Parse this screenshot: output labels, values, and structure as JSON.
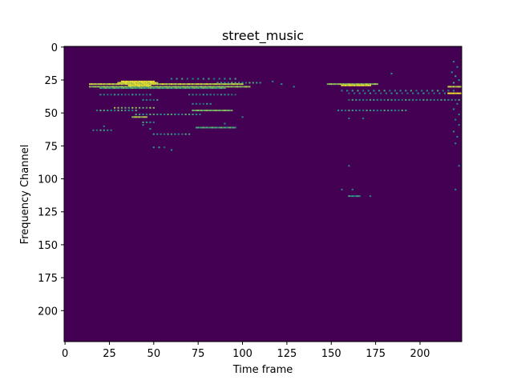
{
  "chart_data": {
    "type": "heatmap",
    "title": "street_music",
    "xlabel": "Time frame",
    "ylabel": "Frequency Channel",
    "xlim": [
      0,
      224
    ],
    "ylim": [
      224,
      0
    ],
    "x_ticks": [
      0,
      25,
      50,
      75,
      100,
      125,
      150,
      175,
      200
    ],
    "y_ticks": [
      0,
      25,
      50,
      75,
      100,
      125,
      150,
      175,
      200
    ],
    "colormap": "viridis",
    "background_value": 0,
    "background_color": "#440154",
    "colors": {
      "low": "#440154",
      "mid": "#21918c",
      "high": "#fde725"
    },
    "segments": [
      {
        "y": 28,
        "x_start": 14,
        "x_end": 100,
        "step": 1,
        "value": 0.85
      },
      {
        "y": 27,
        "x_start": 30,
        "x_end": 52,
        "step": 1,
        "value": 0.9
      },
      {
        "y": 26,
        "x_start": 32,
        "x_end": 50,
        "step": 1,
        "value": 0.95
      },
      {
        "y": 29,
        "x_start": 36,
        "x_end": 48,
        "step": 1,
        "value": 1.0
      },
      {
        "y": 30,
        "x_start": 14,
        "x_end": 104,
        "step": 1,
        "value": 0.75
      },
      {
        "y": 31,
        "x_start": 20,
        "x_end": 90,
        "step": 1,
        "value": 0.6
      },
      {
        "y": 27,
        "x_start": 86,
        "x_end": 110,
        "step": 2,
        "value": 0.55
      },
      {
        "y": 24,
        "x_start": 60,
        "x_end": 96,
        "step": 3,
        "value": 0.5
      },
      {
        "y": 36,
        "x_start": 20,
        "x_end": 48,
        "step": 2,
        "value": 0.45
      },
      {
        "y": 36,
        "x_start": 70,
        "x_end": 96,
        "step": 2,
        "value": 0.45
      },
      {
        "y": 40,
        "x_start": 44,
        "x_end": 52,
        "step": 2,
        "value": 0.45
      },
      {
        "y": 43,
        "x_start": 72,
        "x_end": 82,
        "step": 2,
        "value": 0.45
      },
      {
        "y": 46,
        "x_start": 28,
        "x_end": 50,
        "step": 2,
        "value": 0.7
      },
      {
        "y": 48,
        "x_start": 18,
        "x_end": 40,
        "step": 2,
        "value": 0.55
      },
      {
        "y": 48,
        "x_start": 72,
        "x_end": 94,
        "step": 1,
        "value": 0.7
      },
      {
        "y": 51,
        "x_start": 40,
        "x_end": 76,
        "step": 2,
        "value": 0.55
      },
      {
        "y": 53,
        "x_start": 38,
        "x_end": 46,
        "step": 1,
        "value": 0.8
      },
      {
        "y": 57,
        "x_start": 44,
        "x_end": 50,
        "step": 2,
        "value": 0.5
      },
      {
        "y": 61,
        "x_start": 74,
        "x_end": 96,
        "step": 1,
        "value": 0.6
      },
      {
        "y": 63,
        "x_start": 16,
        "x_end": 26,
        "step": 2,
        "value": 0.5
      },
      {
        "y": 66,
        "x_start": 50,
        "x_end": 70,
        "step": 2,
        "value": 0.5
      },
      {
        "y": 76,
        "x_start": 50,
        "x_end": 56,
        "step": 3,
        "value": 0.45
      },
      {
        "y": 28,
        "x_start": 148,
        "x_end": 176,
        "step": 1,
        "value": 0.75
      },
      {
        "y": 29,
        "x_start": 156,
        "x_end": 172,
        "step": 1,
        "value": 0.95
      },
      {
        "y": 33,
        "x_start": 156,
        "x_end": 220,
        "step": 3,
        "value": 0.5
      },
      {
        "y": 35,
        "x_start": 160,
        "x_end": 214,
        "step": 3,
        "value": 0.45
      },
      {
        "y": 40,
        "x_start": 160,
        "x_end": 224,
        "step": 2,
        "value": 0.5
      },
      {
        "y": 48,
        "x_start": 154,
        "x_end": 192,
        "step": 2,
        "value": 0.5
      },
      {
        "y": 35,
        "x_start": 216,
        "x_end": 224,
        "step": 1,
        "value": 1.0
      },
      {
        "y": 30,
        "x_start": 216,
        "x_end": 224,
        "step": 1,
        "value": 0.85
      },
      {
        "y": 113,
        "x_start": 160,
        "x_end": 166,
        "step": 1,
        "value": 0.5
      }
    ],
    "points": [
      [
        122,
        28,
        0.5
      ],
      [
        129,
        30,
        0.45
      ],
      [
        117,
        26,
        0.45
      ],
      [
        184,
        20,
        0.5
      ],
      [
        219,
        11,
        0.5
      ],
      [
        221,
        15,
        0.45
      ],
      [
        218,
        19,
        0.5
      ],
      [
        220,
        22,
        0.55
      ],
      [
        222,
        25,
        0.5
      ],
      [
        219,
        27,
        0.6
      ],
      [
        221,
        43,
        0.45
      ],
      [
        219,
        47,
        0.5
      ],
      [
        222,
        51,
        0.45
      ],
      [
        220,
        55,
        0.45
      ],
      [
        222,
        59,
        0.45
      ],
      [
        219,
        64,
        0.5
      ],
      [
        221,
        68,
        0.45
      ],
      [
        220,
        73,
        0.45
      ],
      [
        222,
        90,
        0.45
      ],
      [
        220,
        108,
        0.45
      ],
      [
        160,
        90,
        0.45
      ],
      [
        156,
        108,
        0.45
      ],
      [
        162,
        108,
        0.45
      ],
      [
        172,
        113,
        0.45
      ],
      [
        160,
        54,
        0.45
      ],
      [
        168,
        54,
        0.45
      ],
      [
        44,
        59,
        0.5
      ],
      [
        48,
        62,
        0.5
      ],
      [
        60,
        78,
        0.5
      ],
      [
        22,
        60,
        0.45
      ],
      [
        90,
        58,
        0.45
      ],
      [
        100,
        53,
        0.45
      ]
    ]
  }
}
